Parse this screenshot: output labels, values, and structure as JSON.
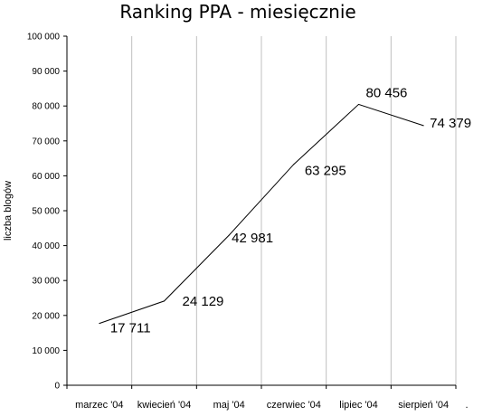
{
  "chart_data": {
    "type": "line",
    "title": "Ranking PPA - miesięcznie",
    "ylabel": "liczba blogów",
    "xlabel": "",
    "categories": [
      "marzec '04",
      "kwiecień '04",
      "maj '04",
      "czerwiec '04",
      "lipiec '04",
      "sierpień '04",
      "."
    ],
    "x": [
      0.5,
      1.5,
      2.5,
      3.5,
      4.5,
      5.5
    ],
    "values": [
      17711,
      24129,
      42981,
      63295,
      80456,
      74379
    ],
    "data_labels": [
      "17 711",
      "24 129",
      "42 981",
      "63 295",
      "80 456",
      "74 379"
    ],
    "ylim": [
      0,
      100000
    ],
    "yticks": [
      "0",
      "10 000",
      "20 000",
      "30 000",
      "40 000",
      "50 000",
      "60 000",
      "70 000",
      "80 000",
      "90 000",
      "100 000"
    ],
    "grid": "vertical",
    "line_color": "#000000",
    "grid_color": "#c0c0c0"
  }
}
